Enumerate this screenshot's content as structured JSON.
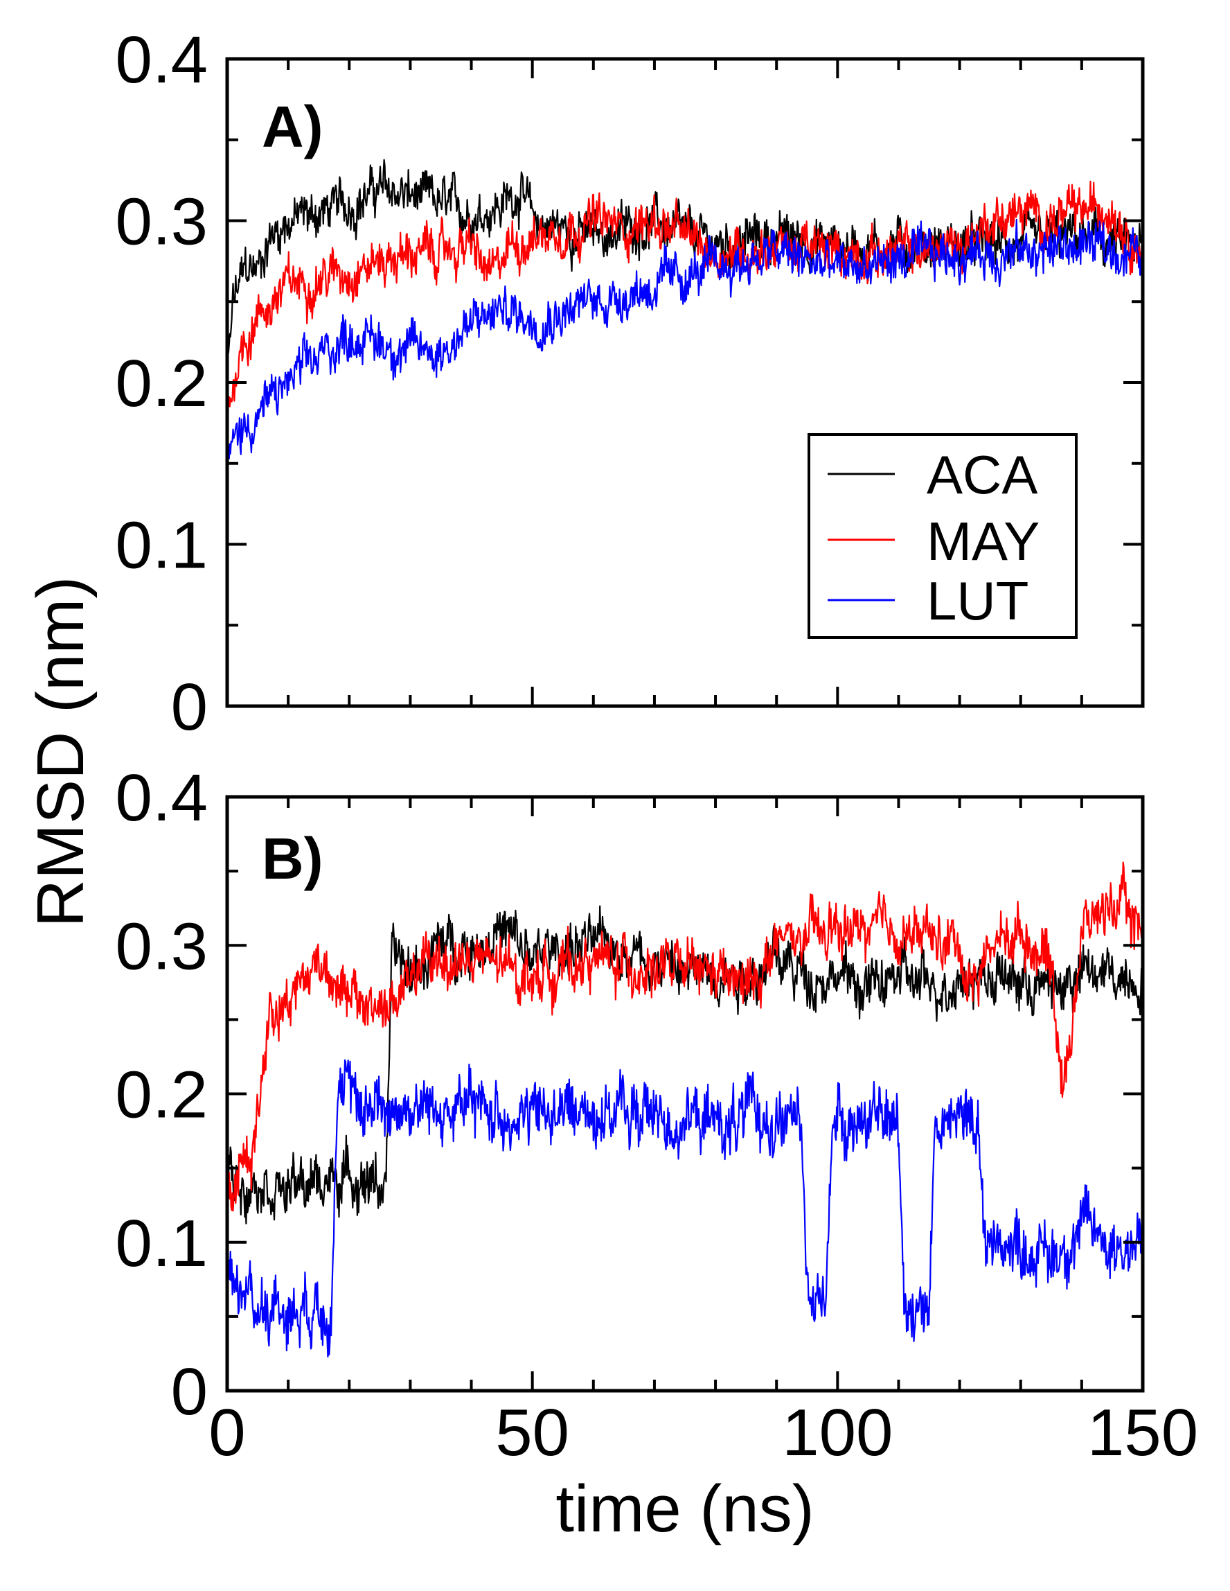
{
  "chart_data": {
    "type": "line",
    "ylabel": "RMSD (nm)",
    "xlabel": "time (ns)",
    "xlim": [
      0,
      150
    ],
    "ylim": [
      0,
      0.4
    ],
    "xticks": [
      0,
      50,
      100,
      150
    ],
    "xtick_labels": [
      "0",
      "50",
      "100",
      "150"
    ],
    "yticks": [
      0,
      0.1,
      0.2,
      0.3,
      0.4
    ],
    "ytick_labels": [
      "0",
      "0.1",
      "0.2",
      "0.3",
      "0.4"
    ],
    "legend": {
      "placement": "right-middle of panel A",
      "entries": [
        {
          "name": "ACA",
          "color": "#000000"
        },
        {
          "name": "MAY",
          "color": "#ff0000"
        },
        {
          "name": "LUT",
          "color": "#0000ff"
        }
      ]
    },
    "panels": [
      {
        "label": "A)",
        "series": [
          {
            "name": "ACA",
            "color": "#000000",
            "noise": 0.012,
            "x": [
              0,
              1,
              3,
              5,
              7,
              10,
              15,
              20,
              25,
              30,
              35,
              40,
              45,
              48,
              50,
              55,
              60,
              65,
              70,
              75,
              80,
              90,
              100,
              110,
              120,
              130,
              140,
              150
            ],
            "y": [
              0.2,
              0.25,
              0.27,
              0.27,
              0.29,
              0.3,
              0.305,
              0.31,
              0.32,
              0.315,
              0.31,
              0.305,
              0.31,
              0.32,
              0.3,
              0.295,
              0.29,
              0.295,
              0.3,
              0.29,
              0.285,
              0.29,
              0.285,
              0.285,
              0.285,
              0.285,
              0.29,
              0.28
            ]
          },
          {
            "name": "MAY",
            "color": "#ff0000",
            "noise": 0.012,
            "x": [
              0,
              2,
              5,
              10,
              15,
              20,
              25,
              30,
              35,
              40,
              42,
              44,
              46,
              50,
              55,
              60,
              65,
              70,
              75,
              80,
              90,
              100,
              110,
              120,
              125,
              130,
              135,
              140,
              145,
              150
            ],
            "y": [
              0.18,
              0.22,
              0.24,
              0.26,
              0.265,
              0.27,
              0.275,
              0.28,
              0.28,
              0.285,
              0.27,
              0.265,
              0.285,
              0.29,
              0.295,
              0.3,
              0.295,
              0.3,
              0.29,
              0.28,
              0.285,
              0.28,
              0.28,
              0.285,
              0.3,
              0.305,
              0.3,
              0.305,
              0.31,
              0.28
            ]
          },
          {
            "name": "LUT",
            "color": "#0000ff",
            "noise": 0.012,
            "x": [
              0,
              2,
              5,
              10,
              15,
              20,
              25,
              30,
              35,
              40,
              45,
              50,
              55,
              60,
              65,
              70,
              75,
              80,
              90,
              100,
              110,
              120,
              130,
              140,
              150
            ],
            "y": [
              0.15,
              0.17,
              0.18,
              0.2,
              0.215,
              0.23,
              0.225,
              0.22,
              0.22,
              0.235,
              0.245,
              0.24,
              0.245,
              0.25,
              0.255,
              0.26,
              0.265,
              0.27,
              0.28,
              0.27,
              0.275,
              0.28,
              0.28,
              0.285,
              0.28
            ]
          }
        ]
      },
      {
        "label": "B)",
        "series": [
          {
            "name": "ACA",
            "color": "#000000",
            "noise": 0.015,
            "x": [
              0,
              2,
              5,
              10,
              15,
              20,
              25,
              26,
              27,
              30,
              35,
              40,
              45,
              50,
              55,
              60,
              65,
              70,
              75,
              80,
              85,
              90,
              95,
              100,
              105,
              110,
              115,
              120,
              125,
              130,
              135,
              140,
              145,
              150
            ],
            "y": [
              0.15,
              0.14,
              0.145,
              0.135,
              0.14,
              0.145,
              0.14,
              0.14,
              0.29,
              0.28,
              0.3,
              0.3,
              0.31,
              0.29,
              0.3,
              0.3,
              0.3,
              0.29,
              0.28,
              0.285,
              0.28,
              0.29,
              0.28,
              0.28,
              0.27,
              0.28,
              0.27,
              0.28,
              0.28,
              0.275,
              0.27,
              0.28,
              0.28,
              0.28
            ]
          },
          {
            "name": "MAY",
            "color": "#ff0000",
            "noise": 0.015,
            "x": [
              0,
              2,
              4,
              6,
              7,
              10,
              15,
              18,
              20,
              25,
              28,
              30,
              35,
              40,
              50,
              60,
              70,
              80,
              85,
              90,
              100,
              110,
              120,
              122,
              125,
              130,
              135,
              137,
              140,
              145,
              150
            ],
            "y": [
              0.12,
              0.15,
              0.16,
              0.22,
              0.26,
              0.265,
              0.29,
              0.28,
              0.26,
              0.26,
              0.26,
              0.28,
              0.29,
              0.29,
              0.28,
              0.29,
              0.285,
              0.28,
              0.27,
              0.3,
              0.31,
              0.31,
              0.3,
              0.27,
              0.3,
              0.31,
              0.29,
              0.2,
              0.31,
              0.33,
              0.31
            ]
          },
          {
            "name": "LUT",
            "color": "#0000ff",
            "noise": 0.018,
            "x": [
              0,
              2,
              4,
              6,
              10,
              15,
              17,
              18,
              20,
              30,
              40,
              50,
              60,
              70,
              80,
              90,
              94,
              95,
              98,
              99,
              100,
              110,
              111,
              115,
              116,
              120,
              123,
              124,
              130,
              135,
              140,
              145,
              150
            ],
            "y": [
              0.08,
              0.07,
              0.06,
              0.06,
              0.055,
              0.06,
              0.06,
              0.2,
              0.195,
              0.19,
              0.19,
              0.185,
              0.19,
              0.185,
              0.18,
              0.185,
              0.18,
              0.06,
              0.06,
              0.18,
              0.185,
              0.18,
              0.06,
              0.06,
              0.18,
              0.18,
              0.19,
              0.1,
              0.1,
              0.09,
              0.11,
              0.1,
              0.1
            ]
          }
        ]
      }
    ]
  }
}
